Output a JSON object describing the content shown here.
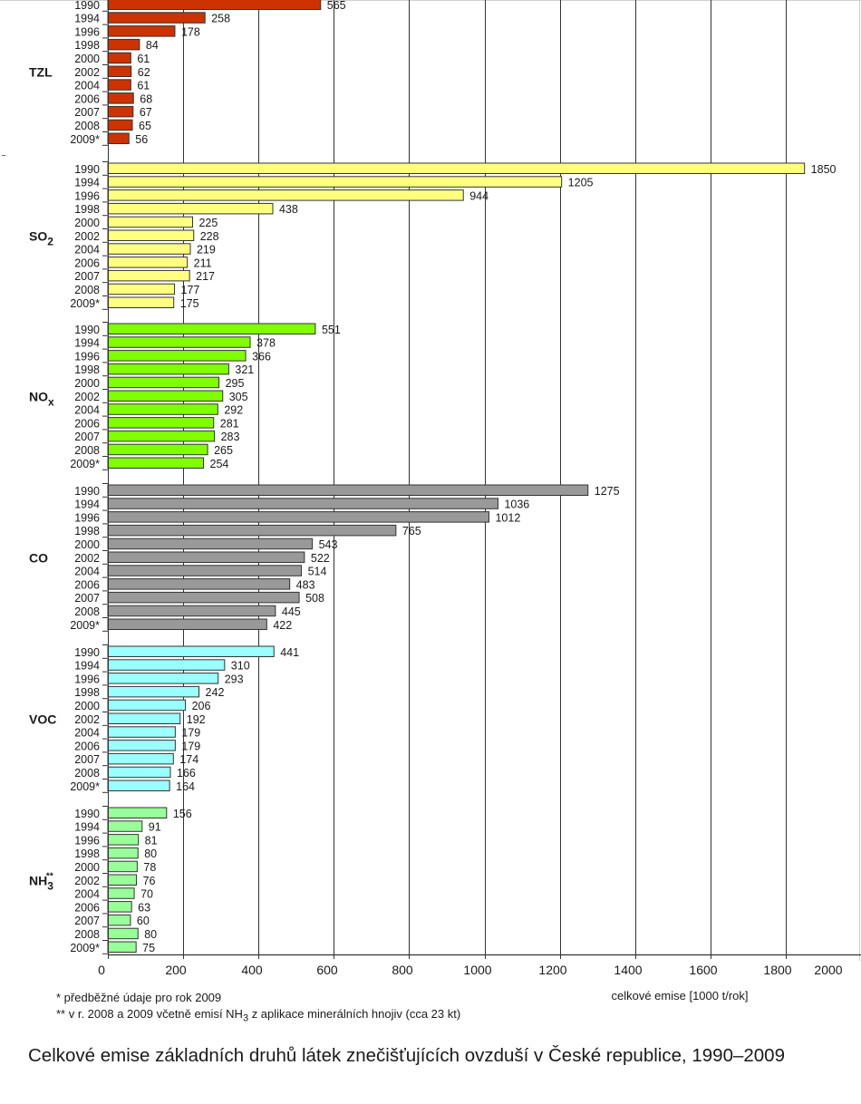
{
  "chart_data": {
    "type": "bar",
    "orientation": "horizontal",
    "title": "Celkové emise základních druhů látek znečišťujících ovzduší v České republice, 1990–2009",
    "xlabel": "celkové emise [1000 t/rok]",
    "ylabel": "",
    "xlim": [
      0,
      2000
    ],
    "xticks": [
      "0",
      "200",
      "400",
      "600",
      "800",
      "1000",
      "1200",
      "1400",
      "1600",
      "1800",
      "2000"
    ],
    "grid": true,
    "categories": [
      "1990",
      "1994",
      "1996",
      "1998",
      "2000",
      "2002",
      "2004",
      "2006",
      "2007",
      "2008",
      "2009*"
    ],
    "series": [
      {
        "name": "TZL",
        "label_main": "TZL",
        "label_sub": "",
        "label_sup": "",
        "color": "#cc3300",
        "values": [
          565,
          258,
          178,
          84,
          61,
          62,
          61,
          68,
          67,
          65,
          56
        ]
      },
      {
        "name": "SO2",
        "label_main": "SO",
        "label_sub": "2",
        "label_sup": "",
        "color": "#ffff80",
        "values": [
          1850,
          1205,
          944,
          438,
          225,
          228,
          219,
          211,
          217,
          177,
          175
        ]
      },
      {
        "name": "NOx",
        "label_main": "NO",
        "label_sub": "x",
        "label_sup": "",
        "color": "#80ff00",
        "values": [
          551,
          378,
          366,
          321,
          295,
          305,
          292,
          281,
          283,
          265,
          254
        ]
      },
      {
        "name": "CO",
        "label_main": "CO",
        "label_sub": "",
        "label_sup": "",
        "color": "#999999",
        "values": [
          1275,
          1036,
          1012,
          765,
          543,
          522,
          514,
          483,
          508,
          445,
          422
        ]
      },
      {
        "name": "VOC",
        "label_main": "VOC",
        "label_sub": "",
        "label_sup": "",
        "color": "#99ffff",
        "values": [
          441,
          310,
          293,
          242,
          206,
          192,
          179,
          179,
          174,
          166,
          164
        ]
      },
      {
        "name": "NH3**",
        "label_main": "NH",
        "label_sub": "3",
        "label_sup": "**",
        "color": "#99ff99",
        "values": [
          156,
          91,
          81,
          80,
          78,
          76,
          70,
          63,
          60,
          80,
          75
        ]
      }
    ]
  },
  "notes": {
    "note1": "*  předběžné údaje pro rok 2009",
    "note2_pre": "** v r. 2008 a 2009 včetně emisí NH",
    "note2_sub": "3",
    "note2_post": " z aplikace minerálních hnojiv (cca 23 kt)"
  },
  "caption": "Celkové emise základních druhů látek znečišťujících ovzduší v České republice, 1990–2009"
}
